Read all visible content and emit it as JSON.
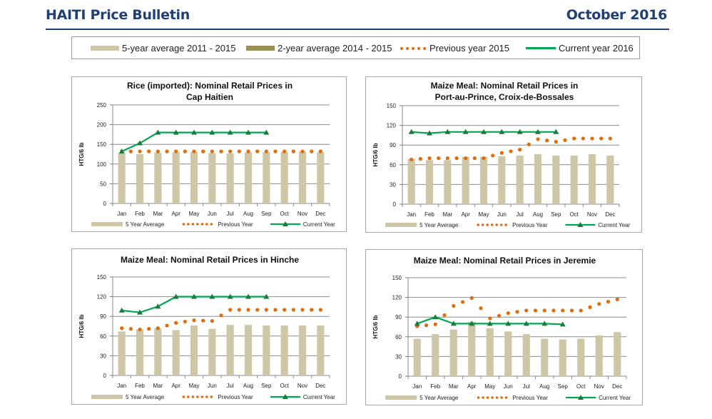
{
  "header": {
    "title": "HAITI Price Bulletin",
    "date": "October 2016"
  },
  "main_legend": {
    "items": [
      {
        "label": "5-year average 2011 - 2015",
        "type": "bar",
        "color": "#cdc7a8"
      },
      {
        "label": "2-year average 2014 - 2015",
        "type": "bar",
        "color": "#9b8f58"
      },
      {
        "label": "Previous year 2015",
        "type": "dots",
        "color": "#e26b0a"
      },
      {
        "label": "Current year 2016",
        "type": "line",
        "color": "#00a651"
      }
    ]
  },
  "colors": {
    "bar": "#cdc7a8",
    "previous": "#e26b0a",
    "current": "#00a651",
    "marker": "#1a7a3a",
    "grid": "#8c8c8c"
  },
  "chart_data": [
    {
      "type": "bar",
      "title": [
        "Rice (imported): Nominal Retail Prices in",
        "Cap Haitien"
      ],
      "xlabel": "",
      "ylabel": "HTG/6 lb",
      "ylim": [
        0,
        250
      ],
      "yticks": [
        0,
        50,
        100,
        150,
        200,
        250
      ],
      "grid": true,
      "legend_position": "bottom",
      "legend_labels": [
        "5 Year Average",
        "Previous Year",
        "Current Year"
      ],
      "categories": [
        "Jan",
        "Feb",
        "Mar",
        "Apr",
        "May",
        "Jun",
        "Jul",
        "Aug",
        "Sep",
        "Oct",
        "Nov",
        "Dec"
      ],
      "series": [
        {
          "name": "5 Year Average",
          "kind": "bar",
          "values": [
            128,
            125,
            129,
            130,
            131,
            128,
            127,
            130,
            130,
            131,
            132,
            130
          ]
        },
        {
          "name": "Previous Year",
          "kind": "dotted-line",
          "values": [
            132,
            132,
            132,
            132,
            132,
            132,
            132,
            132,
            132,
            132,
            132,
            132
          ]
        },
        {
          "name": "Current Year",
          "kind": "line",
          "values": [
            132,
            153,
            180,
            180,
            180,
            180,
            180,
            180,
            180
          ]
        }
      ]
    },
    {
      "type": "bar",
      "title": [
        "Maize Meal: Nominal Retail Prices in",
        "Port-au-Prince, Croix-de-Bossales"
      ],
      "xlabel": "",
      "ylabel": "HTG/6 lb",
      "ylim": [
        0,
        150
      ],
      "yticks": [
        0,
        30,
        60,
        90,
        120,
        150
      ],
      "grid": true,
      "legend_position": "bottom",
      "legend_labels": [
        "5 Year Average",
        "Previous Year",
        "Current Year"
      ],
      "categories": [
        "Jan",
        "Feb",
        "Mar",
        "Apr",
        "May",
        "Jun",
        "Jul",
        "Aug",
        "Sep",
        "Oct",
        "Nov",
        "Dec"
      ],
      "series": [
        {
          "name": "5 Year Average",
          "kind": "bar",
          "values": [
            69,
            67,
            67,
            72,
            72,
            73,
            74,
            76,
            74,
            74,
            76,
            74
          ]
        },
        {
          "name": "Previous Year",
          "kind": "dotted-line",
          "values": [
            68,
            70,
            70,
            70,
            70,
            78,
            83,
            99,
            95,
            100,
            100,
            100
          ]
        },
        {
          "name": "Current Year",
          "kind": "line",
          "values": [
            110,
            108,
            110,
            110,
            110,
            110,
            110,
            110,
            110
          ]
        }
      ]
    },
    {
      "type": "bar",
      "title": [
        "Maize Meal: Nominal Retail Prices in Hinche"
      ],
      "xlabel": "",
      "ylabel": "HTG/6 lb",
      "ylim": [
        0,
        150
      ],
      "yticks": [
        0,
        30,
        60,
        90,
        120,
        150
      ],
      "grid": true,
      "legend_position": "bottom",
      "legend_labels": [
        "5 Year Average",
        "Previous Year",
        "Current Year"
      ],
      "categories": [
        "Jan",
        "Feb",
        "Mar",
        "Apr",
        "May",
        "Jun",
        "Jul",
        "Aug",
        "Sep",
        "Oct",
        "Nov",
        "Dec"
      ],
      "series": [
        {
          "name": "5 Year Average",
          "kind": "bar",
          "values": [
            67,
            70,
            72,
            69,
            76,
            71,
            77,
            77,
            76,
            76,
            76,
            76
          ]
        },
        {
          "name": "Previous Year",
          "kind": "dotted-line",
          "values": [
            72,
            70,
            72,
            80,
            84,
            83,
            100,
            100,
            100,
            100,
            100,
            100
          ]
        },
        {
          "name": "Current Year",
          "kind": "line",
          "values": [
            99,
            96,
            105,
            120,
            120,
            120,
            120,
            120,
            120
          ]
        }
      ]
    },
    {
      "type": "bar",
      "title": [
        "Maize Meal: Nominal Retail Prices in Jeremie"
      ],
      "xlabel": "",
      "ylabel": "HTG/6 lb",
      "ylim": [
        0,
        150
      ],
      "yticks": [
        0,
        30,
        60,
        90,
        120,
        150
      ],
      "grid": true,
      "legend_position": "bottom",
      "legend_labels": [
        "5 Year Average",
        "Previous Year",
        "Current Year"
      ],
      "categories": [
        "Jan",
        "Feb",
        "Mar",
        "Apr",
        "May",
        "Jun",
        "Jul",
        "Aug",
        "Sep",
        "Oct",
        "Nov",
        "Dec"
      ],
      "series": [
        {
          "name": "5 Year Average",
          "kind": "bar",
          "values": [
            57,
            64,
            71,
            83,
            73,
            68,
            64,
            57,
            56,
            57,
            62,
            67
          ]
        },
        {
          "name": "Previous Year",
          "kind": "dotted-line",
          "values": [
            76,
            79,
            107,
            119,
            88,
            96,
            100,
            100,
            100,
            100,
            110,
            117
          ]
        },
        {
          "name": "Current Year",
          "kind": "line",
          "values": [
            80,
            90,
            80,
            80,
            80,
            80,
            80,
            80,
            79
          ]
        }
      ]
    }
  ]
}
